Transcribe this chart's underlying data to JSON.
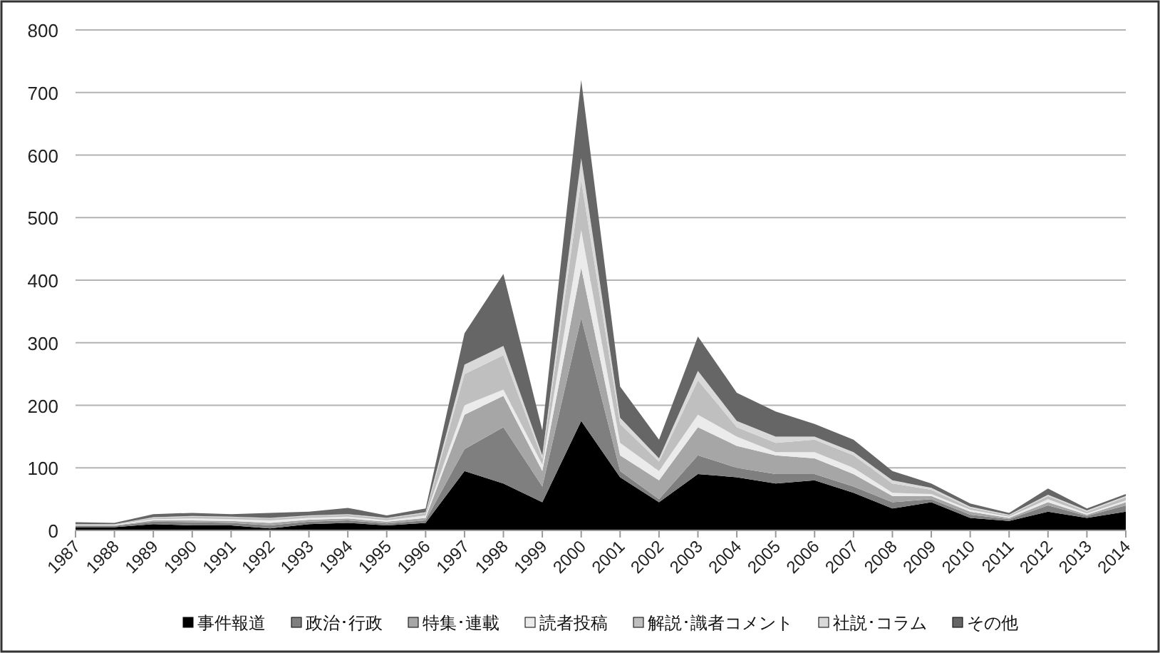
{
  "chart_data": {
    "type": "area",
    "stacked": true,
    "grid": "y",
    "legend": "bottom",
    "categories": [
      "1987",
      "1988",
      "1989",
      "1990",
      "1991",
      "1992",
      "1993",
      "1994",
      "1995",
      "1996",
      "1997",
      "1998",
      "1999",
      "2000",
      "2001",
      "2002",
      "2003",
      "2004",
      "2005",
      "2006",
      "2007",
      "2008",
      "2009",
      "2010",
      "2011",
      "2012",
      "2013",
      "2014"
    ],
    "ylim": [
      0,
      800
    ],
    "yticks": [
      0,
      100,
      200,
      300,
      400,
      500,
      600,
      700,
      800
    ],
    "series": [
      {
        "name": "事件報道",
        "color": "#000000",
        "values": [
          5,
          5,
          10,
          8,
          8,
          3,
          10,
          12,
          8,
          12,
          95,
          75,
          45,
          175,
          85,
          45,
          90,
          85,
          75,
          80,
          60,
          35,
          45,
          20,
          15,
          30,
          20,
          30
        ]
      },
      {
        "name": "政治･行政",
        "color": "#7f7f7f",
        "values": [
          2,
          2,
          4,
          5,
          4,
          5,
          4,
          4,
          3,
          4,
          35,
          90,
          25,
          165,
          10,
          5,
          30,
          15,
          15,
          10,
          10,
          10,
          5,
          5,
          3,
          10,
          3,
          10
        ]
      },
      {
        "name": "特集･連載",
        "color": "#a6a6a6",
        "values": [
          1,
          1,
          2,
          3,
          3,
          4,
          3,
          3,
          3,
          4,
          55,
          50,
          25,
          80,
          25,
          30,
          45,
          35,
          30,
          25,
          20,
          10,
          5,
          5,
          2,
          5,
          2,
          5
        ]
      },
      {
        "name": "読者投稿",
        "color": "#ebebeb",
        "values": [
          1,
          1,
          2,
          3,
          3,
          4,
          3,
          3,
          2,
          4,
          15,
          10,
          10,
          60,
          20,
          15,
          20,
          15,
          5,
          10,
          10,
          5,
          3,
          3,
          2,
          5,
          2,
          3
        ]
      },
      {
        "name": "解説･識者コメント",
        "color": "#bfbfbf",
        "values": [
          1,
          1,
          2,
          3,
          3,
          3,
          3,
          3,
          3,
          4,
          50,
          55,
          10,
          80,
          30,
          15,
          55,
          15,
          15,
          20,
          20,
          15,
          7,
          3,
          2,
          5,
          3,
          5
        ]
      },
      {
        "name": "社説･コラム",
        "color": "#d9d9d9",
        "values": [
          0,
          0,
          1,
          1,
          1,
          1,
          1,
          1,
          1,
          1,
          15,
          15,
          5,
          35,
          10,
          5,
          15,
          10,
          10,
          5,
          5,
          5,
          3,
          2,
          1,
          2,
          2,
          2
        ]
      },
      {
        "name": "その他",
        "color": "#666666",
        "values": [
          3,
          2,
          5,
          5,
          4,
          8,
          6,
          10,
          4,
          6,
          50,
          115,
          40,
          125,
          50,
          30,
          55,
          45,
          40,
          20,
          20,
          15,
          7,
          5,
          3,
          10,
          3,
          3
        ]
      }
    ]
  }
}
